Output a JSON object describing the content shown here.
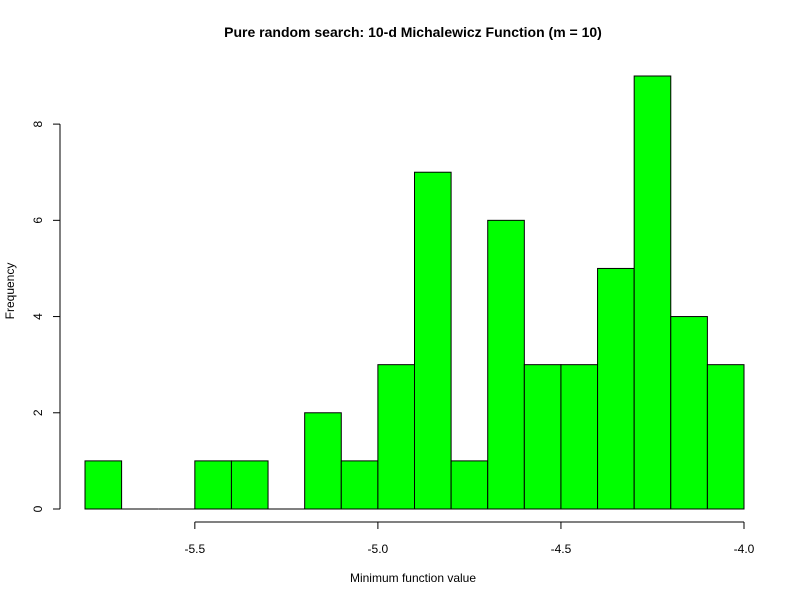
{
  "chart_data": {
    "type": "bar",
    "title": "Pure random search: 10-d Michalewicz Function (m = 10)",
    "xlabel": "Minimum function value",
    "ylabel": "Frequency",
    "bin_edges": [
      -5.8,
      -5.7,
      -5.6,
      -5.5,
      -5.4,
      -5.3,
      -5.2,
      -5.1,
      -5.0,
      -4.9,
      -4.8,
      -4.7,
      -4.6,
      -4.5,
      -4.4,
      -4.3,
      -4.2,
      -4.1,
      -4.0
    ],
    "values": [
      1,
      0,
      0,
      1,
      1,
      0,
      2,
      1,
      3,
      7,
      1,
      6,
      3,
      3,
      5,
      9,
      4,
      3
    ],
    "xlim": [
      -5.8,
      -4.0
    ],
    "ylim": [
      0,
      9
    ],
    "xticks": [
      -5.5,
      -5.0,
      -4.5,
      -4.0
    ],
    "xtick_labels": [
      "-5.5",
      "-5.0",
      "-4.5",
      "-4.0"
    ],
    "yticks": [
      0,
      2,
      4,
      6,
      8
    ],
    "ytick_labels": [
      "0",
      "2",
      "4",
      "6",
      "8"
    ],
    "bar_color": "#00ff00",
    "edge_color": "#000000",
    "grid": false,
    "legend": "none"
  }
}
